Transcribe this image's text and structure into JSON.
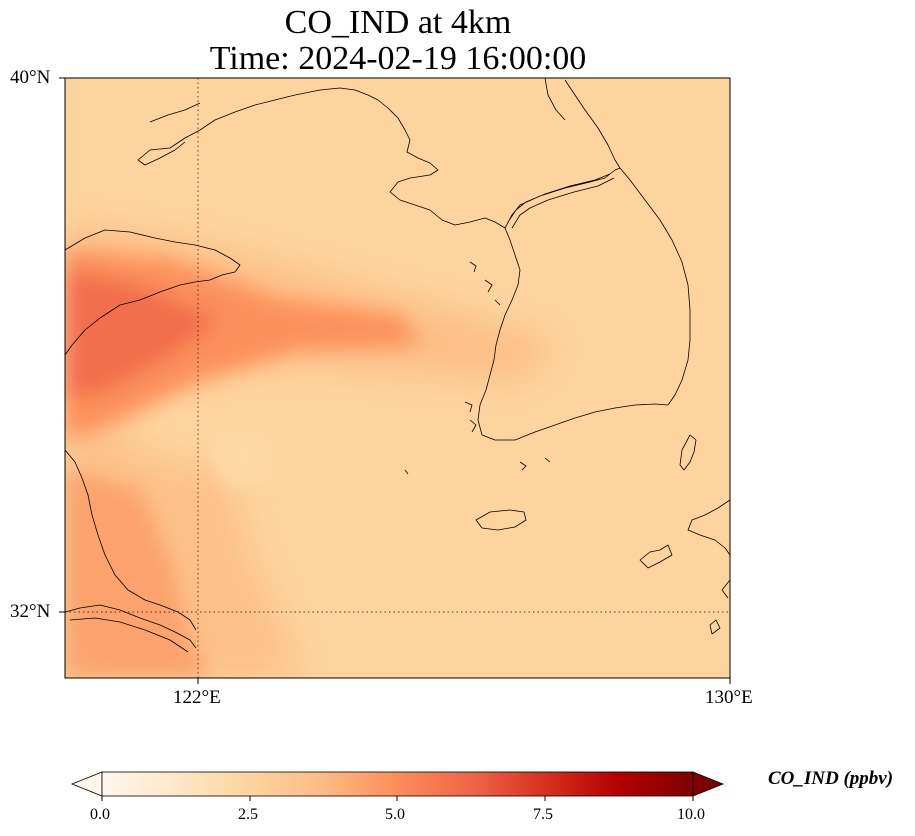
{
  "title": {
    "line1": "CO_IND at 4km",
    "line2": "Time: 2024-02-19 16:00:00"
  },
  "map": {
    "lat_ticks": [
      "40°N",
      "32°N"
    ],
    "lon_ticks": [
      "122°E",
      "130°E"
    ],
    "extent": {
      "lon_min": 120,
      "lon_max": 130,
      "lat_min": 31,
      "lat_max": 40
    },
    "gridlines": {
      "lon": 122,
      "lat": 32,
      "style": "dotted"
    },
    "coastlines": true
  },
  "chart_data": {
    "type": "heatmap",
    "variable": "CO_IND",
    "units": "ppbv",
    "colormap": "OrRd",
    "colorbar": {
      "label": "CO_IND (ppbv)",
      "ticks": [
        "0.0",
        "2.5",
        "5.0",
        "7.5",
        "10.0"
      ],
      "range": [
        0,
        10
      ],
      "extend": "both"
    },
    "field_summary": {
      "background_level": 2.2,
      "plume_max": 5.5,
      "plume_region": "east China coast near 121°E 35–37°N, extending east toward 126°E"
    }
  },
  "colors": {
    "background_field": "#fdd49e",
    "plume_core": "#e34a33",
    "plume_mid": "#fc8d59",
    "coastline": "#000000"
  }
}
